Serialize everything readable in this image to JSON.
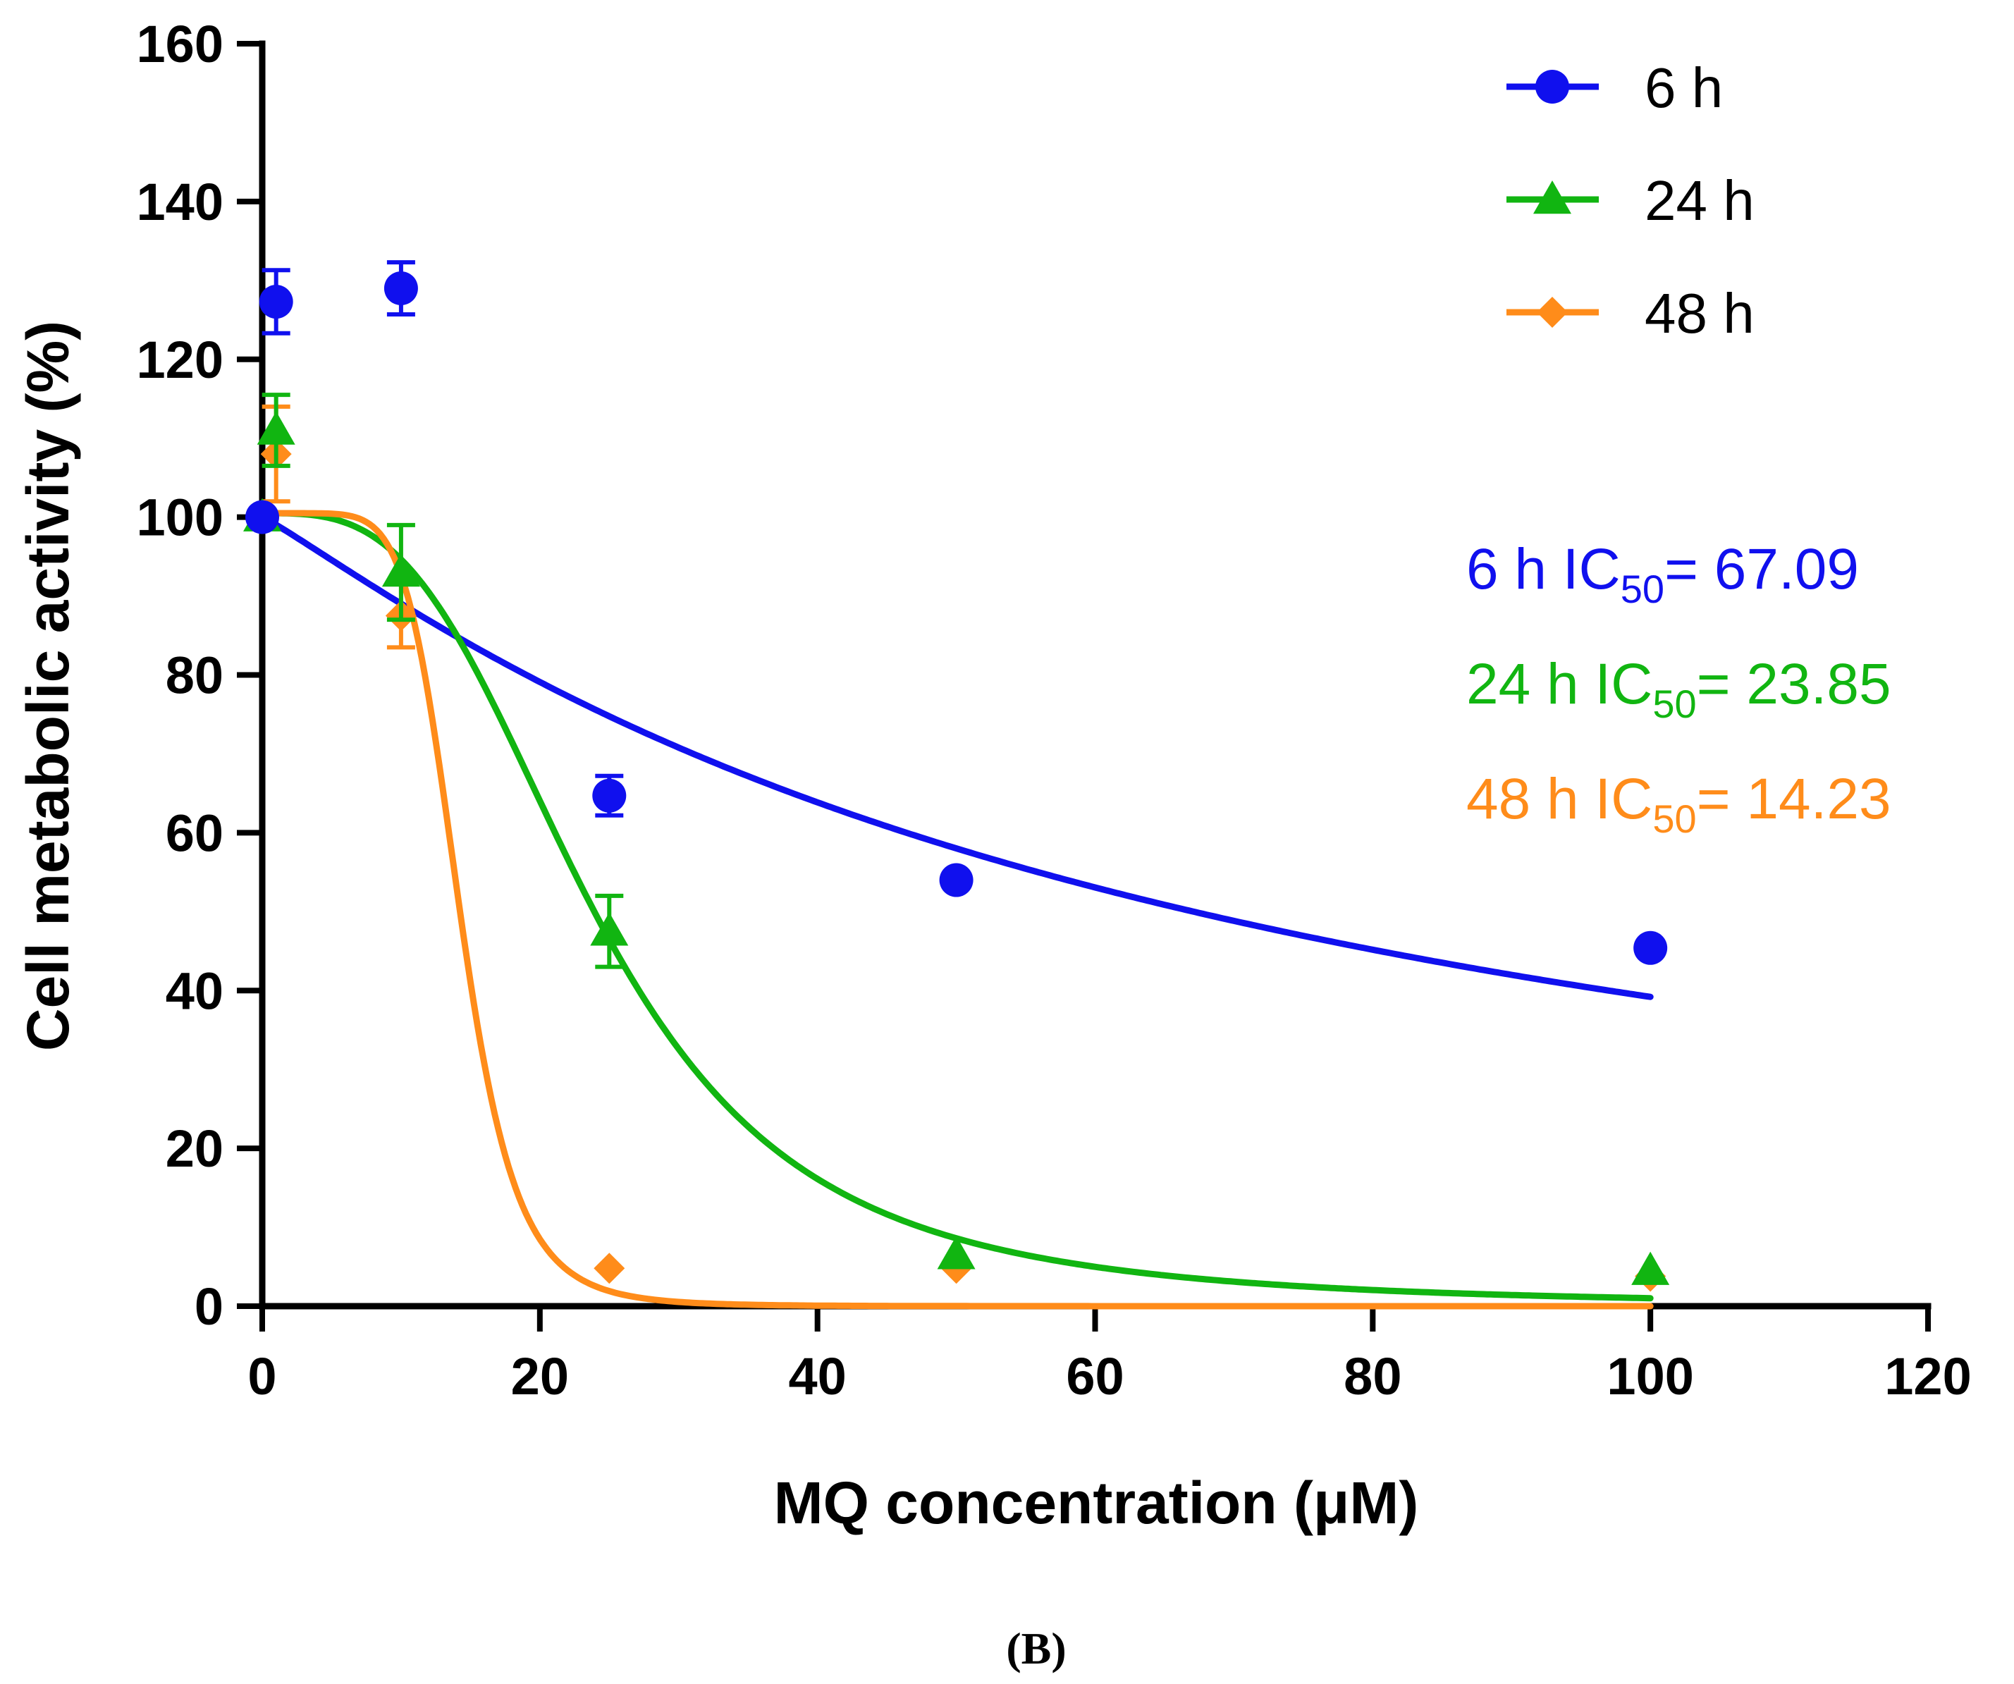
{
  "chart_data": {
    "type": "scatter",
    "panel_label": "(B)",
    "xlabel": "MQ concentration (μM)",
    "ylabel": "Cell metabolic activity (%)",
    "xlim": [
      0,
      120
    ],
    "ylim": [
      0,
      160
    ],
    "xticks": [
      0,
      20,
      40,
      60,
      80,
      100,
      120
    ],
    "yticks": [
      0,
      20,
      40,
      60,
      80,
      100,
      120,
      140,
      160
    ],
    "legend_position": "top-right",
    "series": [
      {
        "name": "6 h",
        "marker": "circle",
        "color": "#1010ee",
        "x": [
          0,
          1,
          10,
          25,
          50,
          100
        ],
        "y": [
          100,
          127.3,
          129,
          64.7,
          54,
          45.4
        ],
        "err": [
          0,
          4,
          3.3,
          2.5,
          0,
          0
        ],
        "fit_ic50": 67.09,
        "fit_hill": 1.1,
        "fit_top": 100,
        "ic50_label": "6 h IC",
        "ic50_sub": "50",
        "ic50_value": "= 67.09"
      },
      {
        "name": "24 h",
        "marker": "triangle",
        "color": "#11b511",
        "x": [
          0,
          1,
          10,
          25,
          50,
          100
        ],
        "y": [
          100,
          111,
          93,
          47.5,
          6.5,
          4.5
        ],
        "err": [
          0,
          4.5,
          6,
          4.5,
          0,
          0
        ],
        "fit_ic50": 23.85,
        "fit_hill": 3.2,
        "fit_top": 100.5,
        "ic50_label": "24 h IC",
        "ic50_sub": "50",
        "ic50_value": "= 23.85"
      },
      {
        "name": "48 h",
        "marker": "diamond",
        "color": "#ff8c1a",
        "x": [
          0,
          1,
          10,
          25,
          50,
          100
        ],
        "y": [
          100,
          108,
          87.5,
          4.8,
          4.8,
          3.8
        ],
        "err": [
          0,
          6,
          4,
          0,
          0,
          0
        ],
        "fit_ic50": 14.23,
        "fit_hill": 7.0,
        "fit_top": 100.5,
        "ic50_label": "48 h IC",
        "ic50_sub": "50",
        "ic50_value": "= 14.23"
      }
    ]
  }
}
